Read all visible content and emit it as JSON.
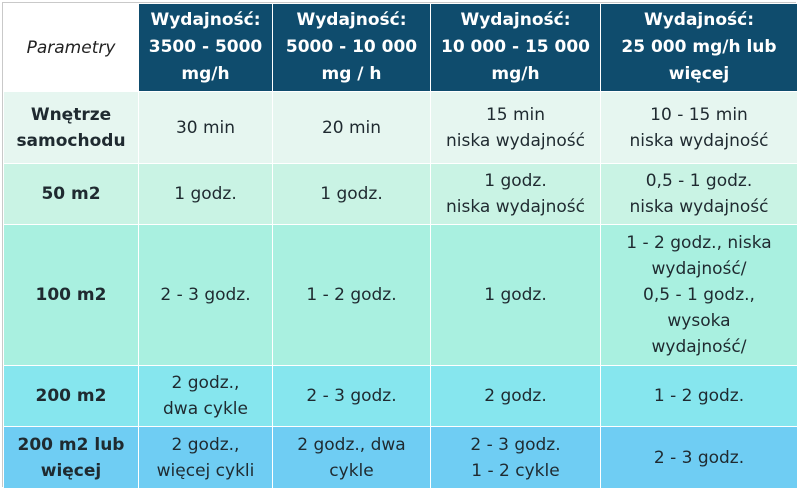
{
  "table": {
    "corner_label": "Parametry",
    "columns": [
      [
        "Wydajność:",
        "3500 - 5000",
        "mg/h"
      ],
      [
        "Wydajność:",
        "5000 - 10 000",
        "mg / h"
      ],
      [
        "Wydajność:",
        "10 000 - 15 000",
        "mg/h"
      ],
      [
        "Wydajność:",
        "25 000 mg/h lub",
        "więcej"
      ]
    ],
    "rows": [
      {
        "label": [
          "Wnętrze",
          "samochodu"
        ],
        "cells": [
          [
            "30 min"
          ],
          [
            "20 min"
          ],
          [
            "15 min",
            "niska wydajność"
          ],
          [
            "10 - 15 min",
            "niska wydajność"
          ]
        ]
      },
      {
        "label": [
          "50 m2"
        ],
        "cells": [
          [
            "1 godz."
          ],
          [
            "1 godz."
          ],
          [
            "1 godz.",
            "niska wydajność"
          ],
          [
            "0,5 - 1 godz.",
            "niska wydajność"
          ]
        ]
      },
      {
        "label": [
          "100 m2"
        ],
        "cells": [
          [
            "2 - 3 godz."
          ],
          [
            "1 - 2 godz."
          ],
          [
            "1 godz."
          ],
          [
            "1 - 2 godz., niska",
            "wydajność/",
            "0,5 - 1 godz.,",
            "wysoka",
            "wydajność/"
          ]
        ]
      },
      {
        "label": [
          "200 m2"
        ],
        "cells": [
          [
            "2 godz.,",
            "dwa cykle"
          ],
          [
            "2 - 3 godz."
          ],
          [
            "2 godz."
          ],
          [
            "1 - 2 godz."
          ]
        ]
      },
      {
        "label": [
          "200 m2 lub",
          "więcej"
        ],
        "cells": [
          [
            "2 godz.,",
            "więcej cykli"
          ],
          [
            "2 godz., dwa",
            "cykle"
          ],
          [
            "2 - 3 godz.",
            "1 - 2 cykle"
          ],
          [
            "2 - 3 godz."
          ]
        ]
      }
    ]
  }
}
